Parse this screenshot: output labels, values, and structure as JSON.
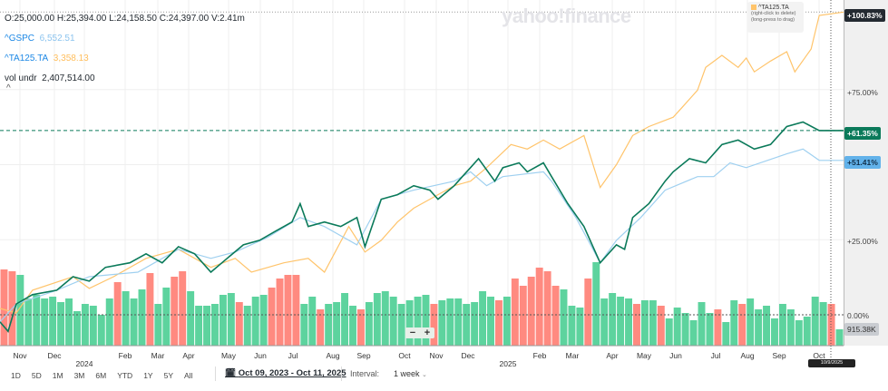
{
  "legend": {
    "ohlc": "O:25,000.00  H:25,394.00  L:24,158.50  C:24,397.00  V:2.41m",
    "gspc_symbol": "^GSPC",
    "gspc_value": "6,552.51",
    "ta_symbol": "^TA125.TA",
    "ta_value": "3,358.13",
    "vol_label": "vol undr",
    "vol_value": "2,407,514.00",
    "collapse": "^"
  },
  "watermark": "yahoo!finance",
  "tooltip": {
    "symbol": "^TA125.TA",
    "line1": "(right-click to delete)",
    "line2": "(long-press to drag)"
  },
  "right_axis": {
    "ta_pct": "+100.83%",
    "p75": "+75.00%",
    "main_pct": "+61.35%",
    "gspc_pct": "+51.41%",
    "p25": "+25.00%",
    "p0": "0.00%",
    "vol": "915.38K"
  },
  "zoom": {
    "minus": "−",
    "plus": "+"
  },
  "x_labels": [
    "Nov",
    "Dec",
    "2024",
    "Feb",
    "Mar",
    "Apr",
    "May",
    "Jun",
    "Jul",
    "Aug",
    "Sep",
    "Oct",
    "Nov",
    "Dec",
    "2025",
    "Feb",
    "Mar",
    "Apr",
    "May",
    "Jun",
    "Jul",
    "Aug",
    "Sep",
    "Oct"
  ],
  "date_badge": "10/9/2025",
  "ranges": [
    "1D",
    "5D",
    "1M",
    "3M",
    "6M",
    "YTD",
    "1Y",
    "5Y",
    "All"
  ],
  "date_range": "Oct 09, 2023 - Oct 11, 2025",
  "interval_label": "Interval:",
  "interval_value": "1 week",
  "colors": {
    "main": "#0b7a5a",
    "gspc": "#9fd0f0",
    "ta": "#ffc46b",
    "up": "#5dd39e",
    "down": "#ff8a80"
  },
  "chart_data": {
    "type": "line",
    "x_unit": "weeks since Oct 09, 2023",
    "ylabel": "% change",
    "ylim": [
      -10,
      102
    ],
    "series": [
      {
        "name": "main",
        "last": 61.35,
        "points": [
          [
            0,
            -2.4
          ],
          [
            1,
            -5.5
          ],
          [
            2,
            3.6
          ],
          [
            4,
            6.7
          ],
          [
            7,
            8.2
          ],
          [
            9,
            12.7
          ],
          [
            11,
            11.2
          ],
          [
            13,
            15.8
          ],
          [
            16,
            17.3
          ],
          [
            18,
            20.3
          ],
          [
            20,
            17.3
          ],
          [
            22,
            22.7
          ],
          [
            24,
            20.3
          ],
          [
            26,
            14.2
          ],
          [
            28,
            18.8
          ],
          [
            30,
            23.3
          ],
          [
            32,
            24.8
          ],
          [
            34,
            27.9
          ],
          [
            36,
            30.9
          ],
          [
            37,
            37
          ],
          [
            38,
            29.4
          ],
          [
            40,
            30.9
          ],
          [
            42,
            29.4
          ],
          [
            44,
            32.4
          ],
          [
            45,
            22.7
          ],
          [
            47,
            38.5
          ],
          [
            49,
            40
          ],
          [
            51,
            43
          ],
          [
            53,
            41.5
          ],
          [
            54,
            38.5
          ],
          [
            56,
            43
          ],
          [
            57,
            46
          ],
          [
            58,
            49
          ],
          [
            59,
            52
          ],
          [
            61,
            44.5
          ],
          [
            62,
            49
          ],
          [
            64,
            50.6
          ],
          [
            65,
            47.6
          ],
          [
            67,
            50.6
          ],
          [
            68,
            46
          ],
          [
            70,
            37
          ],
          [
            72,
            29.4
          ],
          [
            74,
            17.3
          ],
          [
            76,
            23.3
          ],
          [
            77,
            21.8
          ],
          [
            78,
            32.4
          ],
          [
            80,
            37
          ],
          [
            82,
            44.5
          ],
          [
            83,
            47.6
          ],
          [
            85,
            52
          ],
          [
            87,
            50.6
          ],
          [
            89,
            56.7
          ],
          [
            91,
            58.2
          ],
          [
            93,
            55.2
          ],
          [
            95,
            56.7
          ],
          [
            97,
            62.7
          ],
          [
            99,
            64.2
          ],
          [
            101,
            61.35
          ],
          [
            104,
            61.35
          ]
        ]
      },
      {
        "name": "^GSPC",
        "last": 51.41,
        "points": [
          [
            0,
            -2.4
          ],
          [
            2,
            3.6
          ],
          [
            7,
            8.2
          ],
          [
            11,
            12.7
          ],
          [
            17,
            14.2
          ],
          [
            22,
            21.8
          ],
          [
            26,
            18.8
          ],
          [
            29,
            20.9
          ],
          [
            33,
            25.8
          ],
          [
            37,
            32.4
          ],
          [
            40,
            29.4
          ],
          [
            44,
            23.3
          ],
          [
            47,
            38.5
          ],
          [
            51,
            41.5
          ],
          [
            56,
            44.5
          ],
          [
            58,
            47.6
          ],
          [
            60,
            43
          ],
          [
            62,
            46
          ],
          [
            67,
            47.6
          ],
          [
            68,
            44.5
          ],
          [
            71,
            32.4
          ],
          [
            74,
            17.3
          ],
          [
            76,
            24.8
          ],
          [
            79,
            32.4
          ],
          [
            82,
            41.5
          ],
          [
            86,
            46
          ],
          [
            88,
            46
          ],
          [
            90,
            50.6
          ],
          [
            92,
            49
          ],
          [
            97,
            53.6
          ],
          [
            99,
            55.2
          ],
          [
            101,
            51.41
          ],
          [
            104,
            51.41
          ]
        ]
      },
      {
        "name": "^TA125.TA",
        "last": 100.83,
        "points": [
          [
            0,
            2.1
          ],
          [
            2,
            0.6
          ],
          [
            4,
            8.2
          ],
          [
            9,
            12.7
          ],
          [
            11,
            8.8
          ],
          [
            14,
            12.7
          ],
          [
            18,
            18.8
          ],
          [
            22,
            21.8
          ],
          [
            26,
            15.8
          ],
          [
            29,
            18.8
          ],
          [
            31,
            14.2
          ],
          [
            35,
            17.3
          ],
          [
            38,
            18.8
          ],
          [
            40,
            14.2
          ],
          [
            43,
            29.4
          ],
          [
            45,
            20.9
          ],
          [
            47,
            24.8
          ],
          [
            49,
            30.9
          ],
          [
            51,
            35.5
          ],
          [
            54,
            40
          ],
          [
            56,
            43
          ],
          [
            58,
            44.5
          ],
          [
            60,
            49
          ],
          [
            63,
            56.7
          ],
          [
            65,
            55.2
          ],
          [
            67,
            58.2
          ],
          [
            69,
            55.2
          ],
          [
            72,
            59.7
          ],
          [
            74,
            42.4
          ],
          [
            76,
            50
          ],
          [
            78,
            59.7
          ],
          [
            80,
            62.7
          ],
          [
            83,
            65.8
          ],
          [
            84,
            68.8
          ],
          [
            86,
            74.8
          ],
          [
            87,
            82.4
          ],
          [
            89,
            86.4
          ],
          [
            91,
            82.4
          ],
          [
            92,
            85.5
          ],
          [
            93,
            80.9
          ],
          [
            95,
            84.5
          ],
          [
            97,
            87.6
          ],
          [
            98,
            80.9
          ],
          [
            100,
            88.5
          ],
          [
            101,
            99.7
          ],
          [
            104,
            100.83
          ]
        ]
      }
    ],
    "volume_millions": [
      4.2,
      4.1,
      3.9,
      2.6,
      2.8,
      2.6,
      2.7,
      2.4,
      2.6,
      1.9,
      2.3,
      2.2,
      1.7,
      2.6,
      3.5,
      3.0,
      2.6,
      3.1,
      4.0,
      2.3,
      3.2,
      3.8,
      4.1,
      3.0,
      2.2,
      2.2,
      2.3,
      2.8,
      2.9,
      2.4,
      2.2,
      2.7,
      2.8,
      3.2,
      3.7,
      3.9,
      3.9,
      2.3,
      2.7,
      2.0,
      2.3,
      2.4,
      2.9,
      2.2,
      2.0,
      2.4,
      2.9,
      3.0,
      2.7,
      2.3,
      2.5,
      2.7,
      2.8,
      2.3,
      2.5,
      2.6,
      2.6,
      2.3,
      2.4,
      3.0,
      2.7,
      2.5,
      2.7,
      3.7,
      3.3,
      3.8,
      4.3,
      4.1,
      3.3,
      3.1,
      2.2,
      2.1,
      3.7,
      4.6,
      2.6,
      2.9,
      2.7,
      2.6,
      2.3,
      2.5,
      2.5,
      2.2,
      1.5,
      2.1,
      1.8,
      1.4,
      2.4,
      1.8,
      2.0,
      1.3,
      2.5,
      2.3,
      2.6,
      2.0,
      2.2,
      1.5,
      2.3,
      2.0,
      1.4,
      1.6,
      2.7,
      2.4,
      2.3,
      0.9
    ],
    "volume_up": [
      0,
      0,
      1,
      1,
      1,
      1,
      1,
      1,
      1,
      1,
      1,
      1,
      1,
      1,
      0,
      1,
      1,
      1,
      0,
      1,
      1,
      0,
      0,
      1,
      1,
      1,
      1,
      1,
      1,
      0,
      1,
      1,
      1,
      0,
      0,
      0,
      0,
      1,
      1,
      0,
      1,
      1,
      1,
      1,
      0,
      1,
      1,
      1,
      1,
      1,
      1,
      1,
      1,
      0,
      1,
      1,
      1,
      1,
      1,
      1,
      1,
      0,
      1,
      0,
      0,
      0,
      0,
      0,
      0,
      1,
      1,
      1,
      0,
      1,
      1,
      1,
      1,
      1,
      0,
      1,
      1,
      0,
      1,
      1,
      1,
      1,
      1,
      1,
      0,
      1,
      1,
      0,
      1,
      1,
      1,
      1,
      1,
      1,
      1,
      1,
      1,
      1,
      0,
      1
    ]
  }
}
